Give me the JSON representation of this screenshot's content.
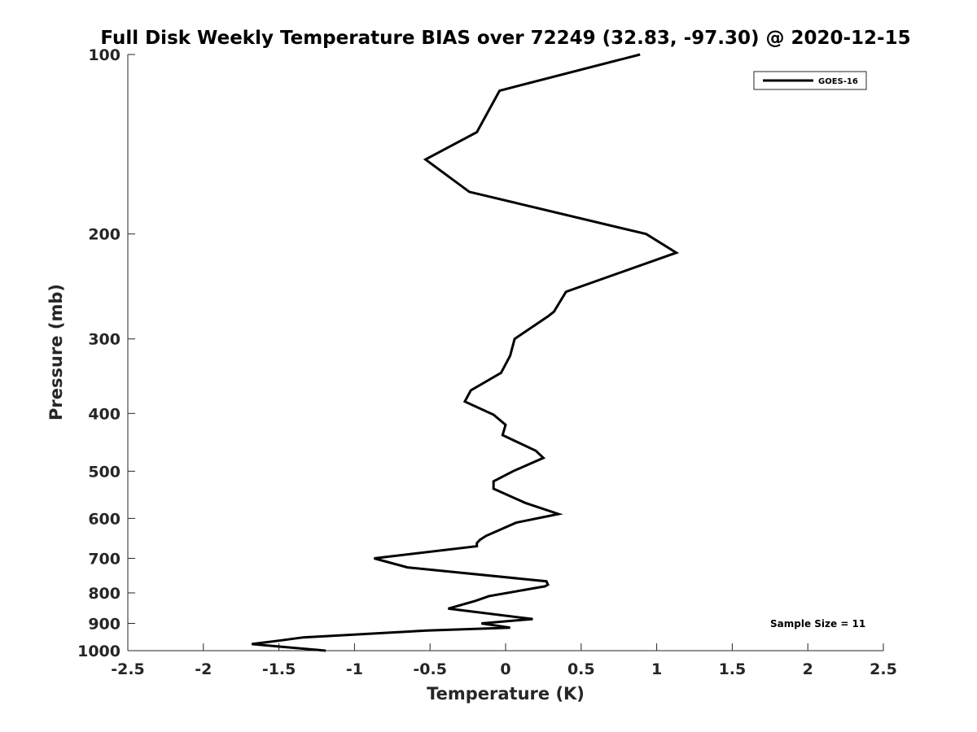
{
  "chart_data": {
    "type": "line",
    "title": "Full Disk Weekly Temperature BIAS over 72249 (32.83, -97.30) @ 2020-12-15",
    "xlabel": "Temperature (K)",
    "ylabel": "Pressure (mb)",
    "xlim": [
      -2.5,
      2.5
    ],
    "ylim": [
      100,
      1000
    ],
    "y_scale": "log",
    "y_reversed": true,
    "grid": false,
    "legend_position": "top-right",
    "x_ticks": [
      -2.5,
      -2,
      -1.5,
      -1,
      -0.5,
      0,
      0.5,
      1,
      1.5,
      2,
      2.5
    ],
    "x_tick_labels": [
      "-2.5",
      "-2",
      "-1.5",
      "-1",
      "-0.5",
      "0",
      "0.5",
      "1",
      "1.5",
      "2",
      "2.5"
    ],
    "y_ticks": [
      100,
      200,
      300,
      400,
      500,
      600,
      700,
      800,
      900,
      1000
    ],
    "y_tick_labels": [
      "100",
      "200",
      "300",
      "400",
      "500",
      "600",
      "700",
      "800",
      "900",
      "1000"
    ],
    "series": [
      {
        "name": "GOES-16",
        "color": "#000000",
        "points": [
          {
            "x": 0.89,
            "y": 100
          },
          {
            "x": -0.04,
            "y": 115
          },
          {
            "x": -0.19,
            "y": 135
          },
          {
            "x": -0.53,
            "y": 150
          },
          {
            "x": -0.24,
            "y": 170
          },
          {
            "x": 0.93,
            "y": 200
          },
          {
            "x": 1.13,
            "y": 215
          },
          {
            "x": 0.4,
            "y": 250
          },
          {
            "x": 0.32,
            "y": 270
          },
          {
            "x": 0.28,
            "y": 275
          },
          {
            "x": 0.06,
            "y": 300
          },
          {
            "x": 0.03,
            "y": 320
          },
          {
            "x": -0.03,
            "y": 342
          },
          {
            "x": -0.23,
            "y": 366
          },
          {
            "x": -0.27,
            "y": 382
          },
          {
            "x": -0.08,
            "y": 402
          },
          {
            "x": 0.0,
            "y": 418
          },
          {
            "x": -0.02,
            "y": 435
          },
          {
            "x": 0.2,
            "y": 462
          },
          {
            "x": 0.25,
            "y": 475
          },
          {
            "x": 0.05,
            "y": 500
          },
          {
            "x": -0.08,
            "y": 520
          },
          {
            "x": -0.08,
            "y": 535
          },
          {
            "x": 0.13,
            "y": 565
          },
          {
            "x": 0.35,
            "y": 590
          },
          {
            "x": 0.07,
            "y": 610
          },
          {
            "x": -0.13,
            "y": 642
          },
          {
            "x": -0.17,
            "y": 652
          },
          {
            "x": -0.19,
            "y": 660
          },
          {
            "x": -0.19,
            "y": 668
          },
          {
            "x": -0.87,
            "y": 700
          },
          {
            "x": -0.65,
            "y": 725
          },
          {
            "x": 0.27,
            "y": 765
          },
          {
            "x": 0.28,
            "y": 775
          },
          {
            "x": 0.26,
            "y": 780
          },
          {
            "x": -0.11,
            "y": 810
          },
          {
            "x": -0.2,
            "y": 825
          },
          {
            "x": -0.38,
            "y": 850
          },
          {
            "x": 0.18,
            "y": 885
          },
          {
            "x": -0.16,
            "y": 900
          },
          {
            "x": 0.03,
            "y": 915
          },
          {
            "x": -0.52,
            "y": 925
          },
          {
            "x": -1.34,
            "y": 950
          },
          {
            "x": -1.5,
            "y": 962
          },
          {
            "x": -1.68,
            "y": 975
          },
          {
            "x": -1.48,
            "y": 985
          },
          {
            "x": -1.19,
            "y": 1000
          }
        ]
      }
    ],
    "annotations": [
      {
        "text": "Sample Size = 11",
        "x": 1.75,
        "y": 900
      }
    ]
  }
}
